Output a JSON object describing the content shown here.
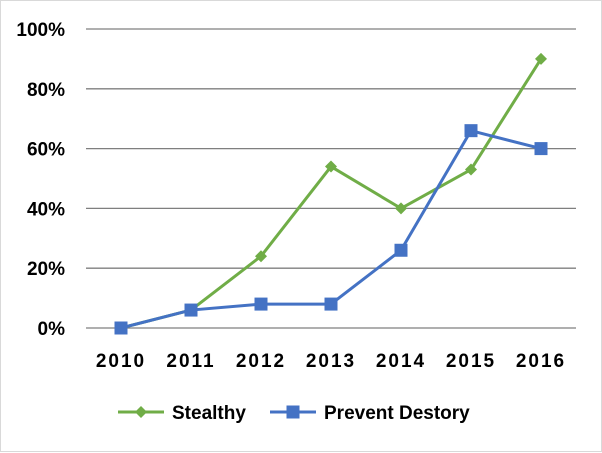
{
  "chart_data": {
    "type": "line",
    "categories": [
      "2010",
      "2011",
      "2012",
      "2013",
      "2014",
      "2015",
      "2016"
    ],
    "series": [
      {
        "name": "Stealthy",
        "values": [
          0,
          6,
          24,
          54,
          40,
          53,
          90
        ],
        "color": "#70ad47",
        "marker": "diamond"
      },
      {
        "name": "Prevent Destory",
        "values": [
          0,
          6,
          8,
          8,
          26,
          66,
          60
        ],
        "color": "#4472c4",
        "marker": "square"
      }
    ],
    "ylim": [
      0,
      100
    ],
    "yticks": [
      "0%",
      "20%",
      "40%",
      "60%",
      "80%",
      "100%"
    ],
    "ytick_values": [
      0,
      20,
      40,
      60,
      80,
      100
    ],
    "grid": true,
    "legend": "bottom"
  }
}
